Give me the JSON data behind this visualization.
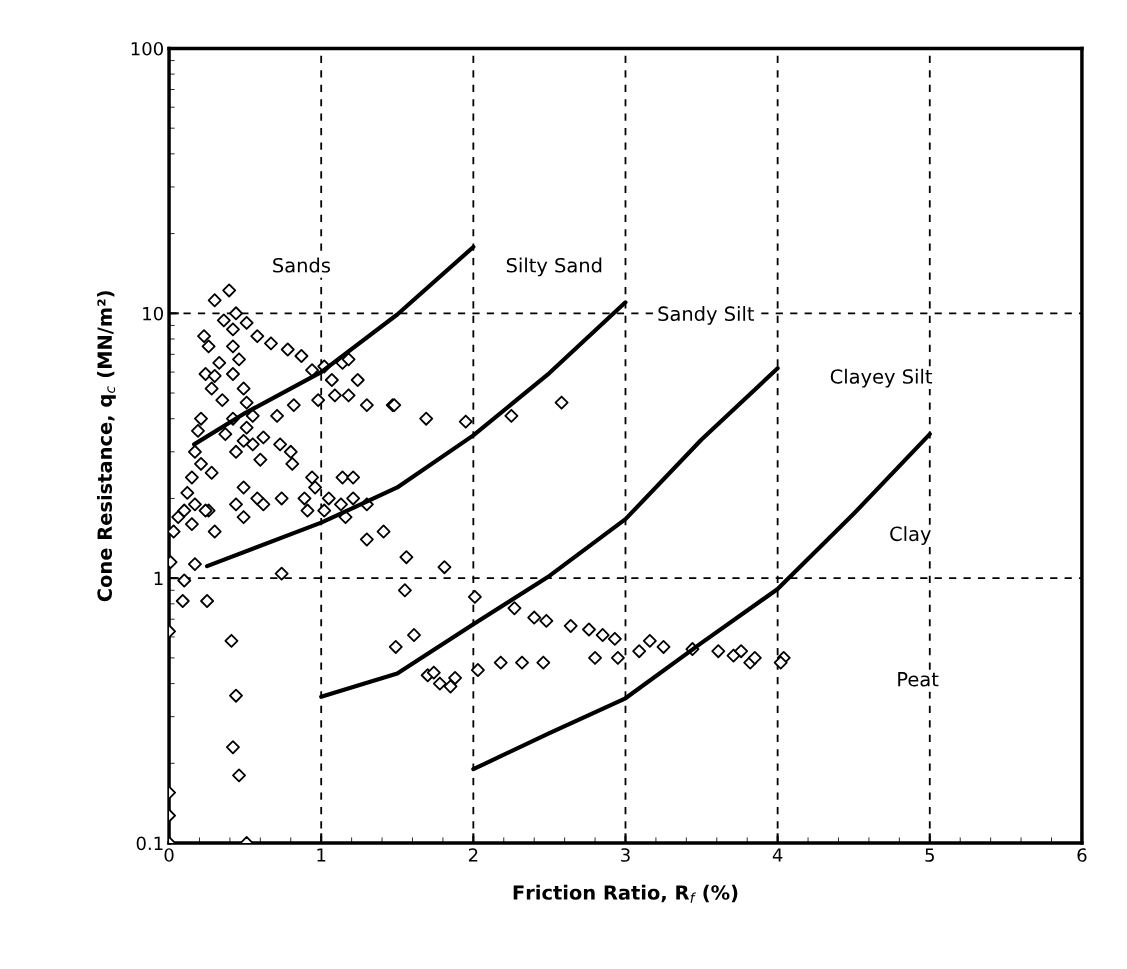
{
  "chart_data": {
    "type": "scatter",
    "xlabel": "Friction Ratio, R$_{f}$ (%)",
    "ylabel": "Cone Resistance, q$_{c}$ (MN/m²)",
    "log": "y",
    "xlim": [
      0,
      6
    ],
    "xticks": [
      0,
      1,
      2,
      3,
      4,
      5,
      6
    ],
    "ylim": [
      0.1,
      100
    ],
    "yticks": [
      0.1,
      1,
      10,
      100
    ],
    "grid": true,
    "series": [
      {
        "color": "#000000",
        "marker": "diamond",
        "x": [
          0.3,
          0.395,
          0.36,
          0.44,
          0.51,
          0.58,
          0.67,
          0.78,
          0.87,
          0.94,
          1.02,
          1.14,
          1.18,
          1.07,
          1.24,
          0.23,
          0.26,
          0.42,
          0.33,
          0.42,
          0.24,
          0.28,
          0.49,
          0.35,
          0.51,
          0.55,
          0.71,
          0.82,
          0.98,
          1.09,
          1.18,
          1.3,
          1.47,
          0.19,
          0.21,
          0.37,
          0.51,
          0.62,
          0.73,
          0.55,
          0.44,
          0.6,
          0.8,
          0.81,
          0.17,
          0.21,
          0.15,
          0.28,
          0.12,
          0.49,
          0.94,
          0.96,
          1.14,
          1.21,
          0.17,
          0.26,
          0.15,
          0.06,
          0.03,
          0.3,
          0.44,
          0.58,
          0.49,
          0.62,
          0.74,
          0.89,
          0.91,
          1.05,
          1.13,
          1.21,
          1.3,
          1.02,
          1.16,
          1.3,
          1.41,
          1.56,
          1.81,
          0.74,
          0.17,
          0.01,
          0.1,
          0.09,
          0.25,
          1.55,
          0.42,
          0.46,
          0.3,
          0.42,
          0.49,
          0.24,
          0.1,
          2.25,
          2.58,
          1.69,
          1.95,
          1.48,
          2.01,
          2.27,
          2.4,
          2.48,
          2.64,
          2.76,
          2.85,
          2.93,
          2.8,
          2.95,
          3.09,
          3.16,
          3.25,
          3.61,
          3.44,
          1.49,
          1.61,
          1.7,
          1.74,
          1.78,
          1.85,
          1.88,
          2.03,
          2.18,
          2.32,
          2.46,
          3.71,
          3.76,
          3.82,
          3.85,
          4.04,
          4.02,
          0.0,
          0.41,
          0.44,
          0.42,
          0.46,
          0.0,
          0.0,
          0.0,
          0.51
        ],
        "values": [
          11.2,
          12.2,
          9.4,
          10,
          9.2,
          8.2,
          7.7,
          7.3,
          6.9,
          6.1,
          6.3,
          6.5,
          6.7,
          5.6,
          5.6,
          8.2,
          7.5,
          7.5,
          6.5,
          5.9,
          5.9,
          5.2,
          5.2,
          4.7,
          4.6,
          4.1,
          4.1,
          4.5,
          4.7,
          4.9,
          4.9,
          4.5,
          4.5,
          3.6,
          4.0,
          3.5,
          3.7,
          3.4,
          3.2,
          3.2,
          3.0,
          2.8,
          3.0,
          2.7,
          3.0,
          2.7,
          2.4,
          2.5,
          2.1,
          2.2,
          2.4,
          2.2,
          2.4,
          2.4,
          1.9,
          1.8,
          1.6,
          1.7,
          1.5,
          1.5,
          1.9,
          2.0,
          1.7,
          1.9,
          2.0,
          2.0,
          1.8,
          2.0,
          1.9,
          2.0,
          1.9,
          1.8,
          1.7,
          1.4,
          1.5,
          1.2,
          1.1,
          1.04,
          1.13,
          1.15,
          0.98,
          0.82,
          0.82,
          0.9,
          8.7,
          6.7,
          5.8,
          4.0,
          3.3,
          1.8,
          1.8,
          4.1,
          4.6,
          4.0,
          3.9,
          4.5,
          0.85,
          0.77,
          0.71,
          0.69,
          0.66,
          0.64,
          0.61,
          0.59,
          0.5,
          0.5,
          0.53,
          0.58,
          0.55,
          0.53,
          0.54,
          0.55,
          0.61,
          0.43,
          0.44,
          0.4,
          0.39,
          0.42,
          0.45,
          0.48,
          0.48,
          0.48,
          0.51,
          0.53,
          0.48,
          0.5,
          0.5,
          0.48,
          0.63,
          0.58,
          0.36,
          0.23,
          0.18,
          0.155,
          0.127,
          0.1,
          0.1
        ]
      },
      {
        "type": "line",
        "color": "#000000",
        "x": [
          0.165,
          0.5,
          1,
          1.5,
          2
        ],
        "values": [
          3.2,
          4.2,
          6.0,
          9.9,
          17.8
        ]
      },
      {
        "type": "line",
        "color": "#000000",
        "x": [
          0.25,
          1,
          1.5,
          2,
          2.5,
          3
        ],
        "values": [
          1.11,
          1.62,
          2.2,
          3.46,
          5.95,
          11.0
        ]
      },
      {
        "type": "line",
        "color": "#000000",
        "x": [
          1,
          1.5,
          2,
          2.5,
          3,
          3.5,
          4
        ],
        "values": [
          0.357,
          0.437,
          0.67,
          1.02,
          1.67,
          3.34,
          6.2
        ]
      },
      {
        "type": "line",
        "color": "#000000",
        "x": [
          2,
          2.5,
          3,
          3.5,
          4,
          4.5,
          5
        ],
        "values": [
          0.19,
          0.26,
          0.352,
          0.57,
          0.91,
          1.75,
          3.5
        ]
      }
    ],
    "annotations": [
      "Sands",
      "Silty Sand",
      "Sandy Silt",
      "Clayey Silt",
      "Clay",
      "Peat"
    ]
  }
}
